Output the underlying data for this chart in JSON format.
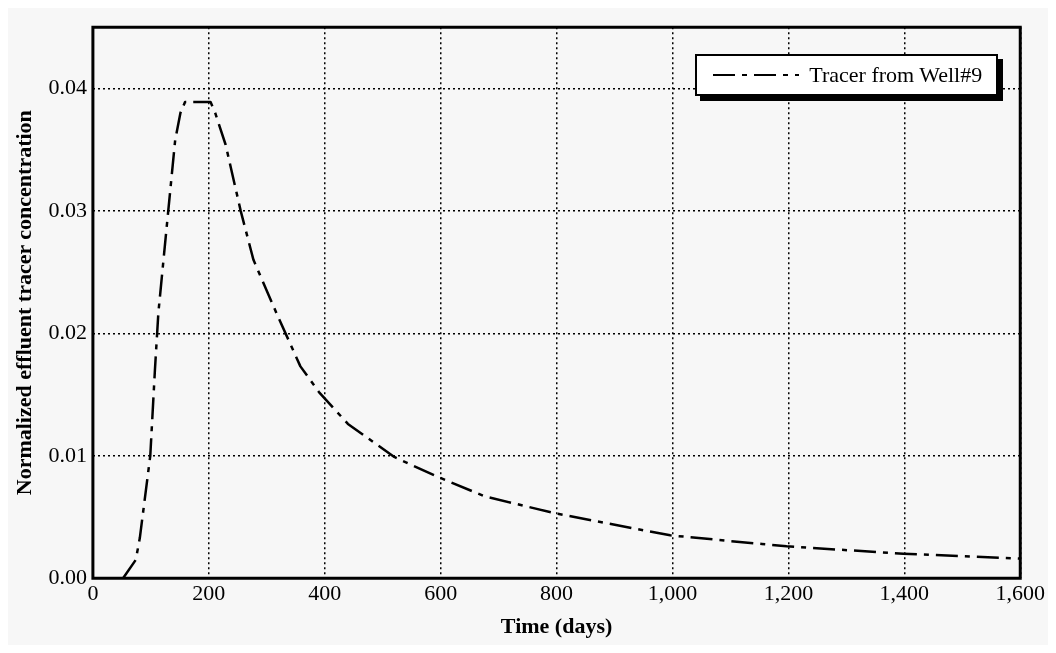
{
  "chart_data": {
    "type": "line",
    "xlabel": "Time (days)",
    "ylabel": "Normalized effluent tracer concentration",
    "xlim": [
      0,
      1600
    ],
    "xticks": [
      0,
      200,
      400,
      600,
      800,
      {
        "value": 1000,
        "label": "1,000"
      },
      {
        "value": 1200,
        "label": "1,200"
      },
      {
        "value": 1400,
        "label": "1,400"
      },
      {
        "value": 1600,
        "label": "1,600"
      }
    ],
    "ylim": [
      0,
      0.045
    ],
    "yticks": [
      {
        "value": 0,
        "label": "0.00"
      },
      0.01,
      0.02,
      0.03,
      0.04
    ],
    "grid": true,
    "legend": "top right",
    "line_style": "dashed",
    "marker": "none",
    "series": [
      {
        "name": "Tracer from Well#9",
        "color": "#000000",
        "x": [
          52,
          74,
          81,
          99,
          107,
          113,
          130,
          142,
          151,
          159,
          203,
          211,
          229,
          255,
          277,
          319,
          358,
          390,
          440,
          520,
          589,
          675,
          797,
          996,
          1197,
          1398,
          1599
        ],
        "values": [
          0,
          0.0015,
          0.0033,
          0.01,
          0.017,
          0.0217,
          0.03,
          0.0358,
          0.038,
          0.0389,
          0.0389,
          0.038,
          0.0354,
          0.03,
          0.026,
          0.0214,
          0.0173,
          0.0152,
          0.0126,
          0.0099,
          0.0084,
          0.0067,
          0.0053,
          0.0035,
          0.0026,
          0.002,
          0.0016
        ]
      }
    ]
  }
}
